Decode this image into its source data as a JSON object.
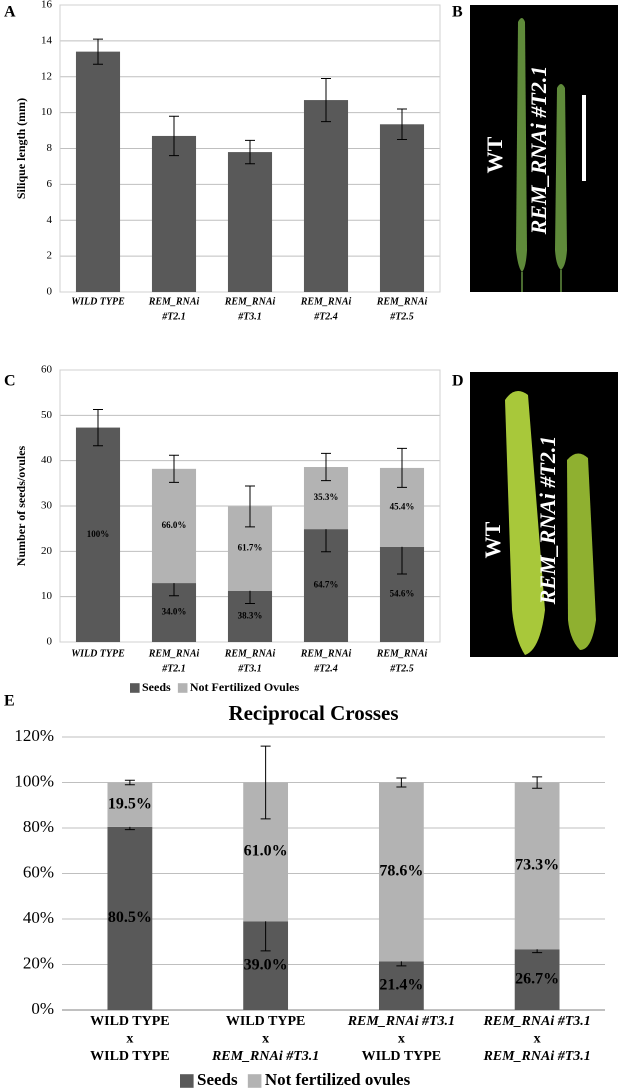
{
  "chart_data": [
    {
      "type": "bar",
      "panel": "A",
      "ylabel": "Silique length (mm)",
      "categories": [
        [
          "WILD TYPE"
        ],
        [
          "REM_RNAi",
          "#T2.1"
        ],
        [
          "REM_RNAi",
          "#T3.1"
        ],
        [
          "REM_RNAi",
          "#T2.4"
        ],
        [
          "REM_RNAi",
          "#T2.5"
        ]
      ],
      "values": [
        13.4,
        8.7,
        7.8,
        10.7,
        9.35
      ],
      "errors": [
        0.7,
        1.1,
        0.65,
        1.2,
        0.85
      ],
      "color": "#595959",
      "ylim": [
        0,
        16
      ],
      "yticks": [
        0,
        2,
        4,
        6,
        8,
        10,
        12,
        14,
        16
      ],
      "grid": true
    },
    {
      "type": "stacked_bar",
      "panel": "C",
      "ylabel": "Number of seeds/ovules",
      "categories": [
        [
          "WILD TYPE"
        ],
        [
          "REM_RNAi",
          "#T2.1"
        ],
        [
          "REM_RNAi",
          "#T3.1"
        ],
        [
          "REM_RNAi",
          "#T2.4"
        ],
        [
          "REM_RNAi",
          "#T2.5"
        ]
      ],
      "series": [
        {
          "name": "Seeds",
          "color": "#595959",
          "values": [
            47.3,
            13,
            11.3,
            24.9,
            21
          ],
          "errors": [
            4,
            2.8,
            2.8,
            5,
            6
          ],
          "labels": [
            {
              "value": 100,
              "label": "100%"
            },
            {
              "value": 34.0,
              "label": "34.0%"
            },
            {
              "value": 38.3,
              "label": "38.3%"
            },
            {
              "value": 64.7,
              "label": "64.7%"
            },
            {
              "value": 54.6,
              "label": "54.6%"
            }
          ]
        },
        {
          "name": "Not Fertilized Ovules",
          "color": "#b3b3b3",
          "values": [
            0,
            25.2,
            18.6,
            13.7,
            17.4
          ],
          "errors": [
            null,
            3,
            4.5,
            3,
            4.3
          ],
          "labels": [
            null,
            {
              "value": 66.0,
              "label": "66.0%"
            },
            {
              "value": 61.7,
              "label": "61.7%"
            },
            {
              "value": 35.3,
              "label": "35.3%"
            },
            {
              "value": 45.4,
              "label": "45.4%"
            }
          ]
        }
      ],
      "ylim": [
        0,
        60
      ],
      "yticks": [
        0,
        10,
        20,
        30,
        40,
        50,
        60
      ],
      "grid": true
    },
    {
      "type": "stacked_bar",
      "panel": "E",
      "title": "Reciprocal Crosses",
      "categories": [
        [
          "WILD TYPE",
          "x",
          "WILD TYPE"
        ],
        [
          "WILD TYPE",
          "x",
          "REM_RNAi #T3.1"
        ],
        [
          "REM_RNAi #T3.1",
          "x",
          "WILD TYPE"
        ],
        [
          "REM_RNAi #T3.1",
          "x",
          "REM_RNAi #T3.1"
        ]
      ],
      "series": [
        {
          "name": "Seeds",
          "color": "#595959",
          "values": [
            80.5,
            39.0,
            21.4,
            26.7
          ],
          "errors": [
            1.2,
            13,
            2,
            1.5
          ],
          "value_labels": [
            "80.5%",
            "39.0%",
            "21.4%",
            "26.7%"
          ]
        },
        {
          "name": "Not fertilized ovules",
          "color": "#b3b3b3",
          "values": [
            19.5,
            61.0,
            78.6,
            73.3
          ],
          "errors": [
            1,
            16,
            2,
            2.5
          ],
          "value_labels": [
            "19.5%",
            "61.0%",
            "78.6%",
            "73.3%"
          ]
        }
      ],
      "ylim": [
        0,
        120
      ],
      "yticks": [
        {
          "value": 0,
          "label": "0%"
        },
        {
          "value": 20,
          "label": "20%"
        },
        {
          "value": 40,
          "label": "40%"
        },
        {
          "value": 60,
          "label": "60%"
        },
        {
          "value": 80,
          "label": "80%"
        },
        {
          "value": 100,
          "label": "100%"
        },
        {
          "value": 120,
          "label": "120%"
        }
      ],
      "grid": true
    }
  ],
  "images": [
    {
      "panel": "B",
      "labels": [
        "WT",
        "REM_RNAi #T2.1"
      ]
    },
    {
      "panel": "D",
      "labels": [
        "WT",
        "REM_RNAi #T2.1"
      ]
    }
  ]
}
